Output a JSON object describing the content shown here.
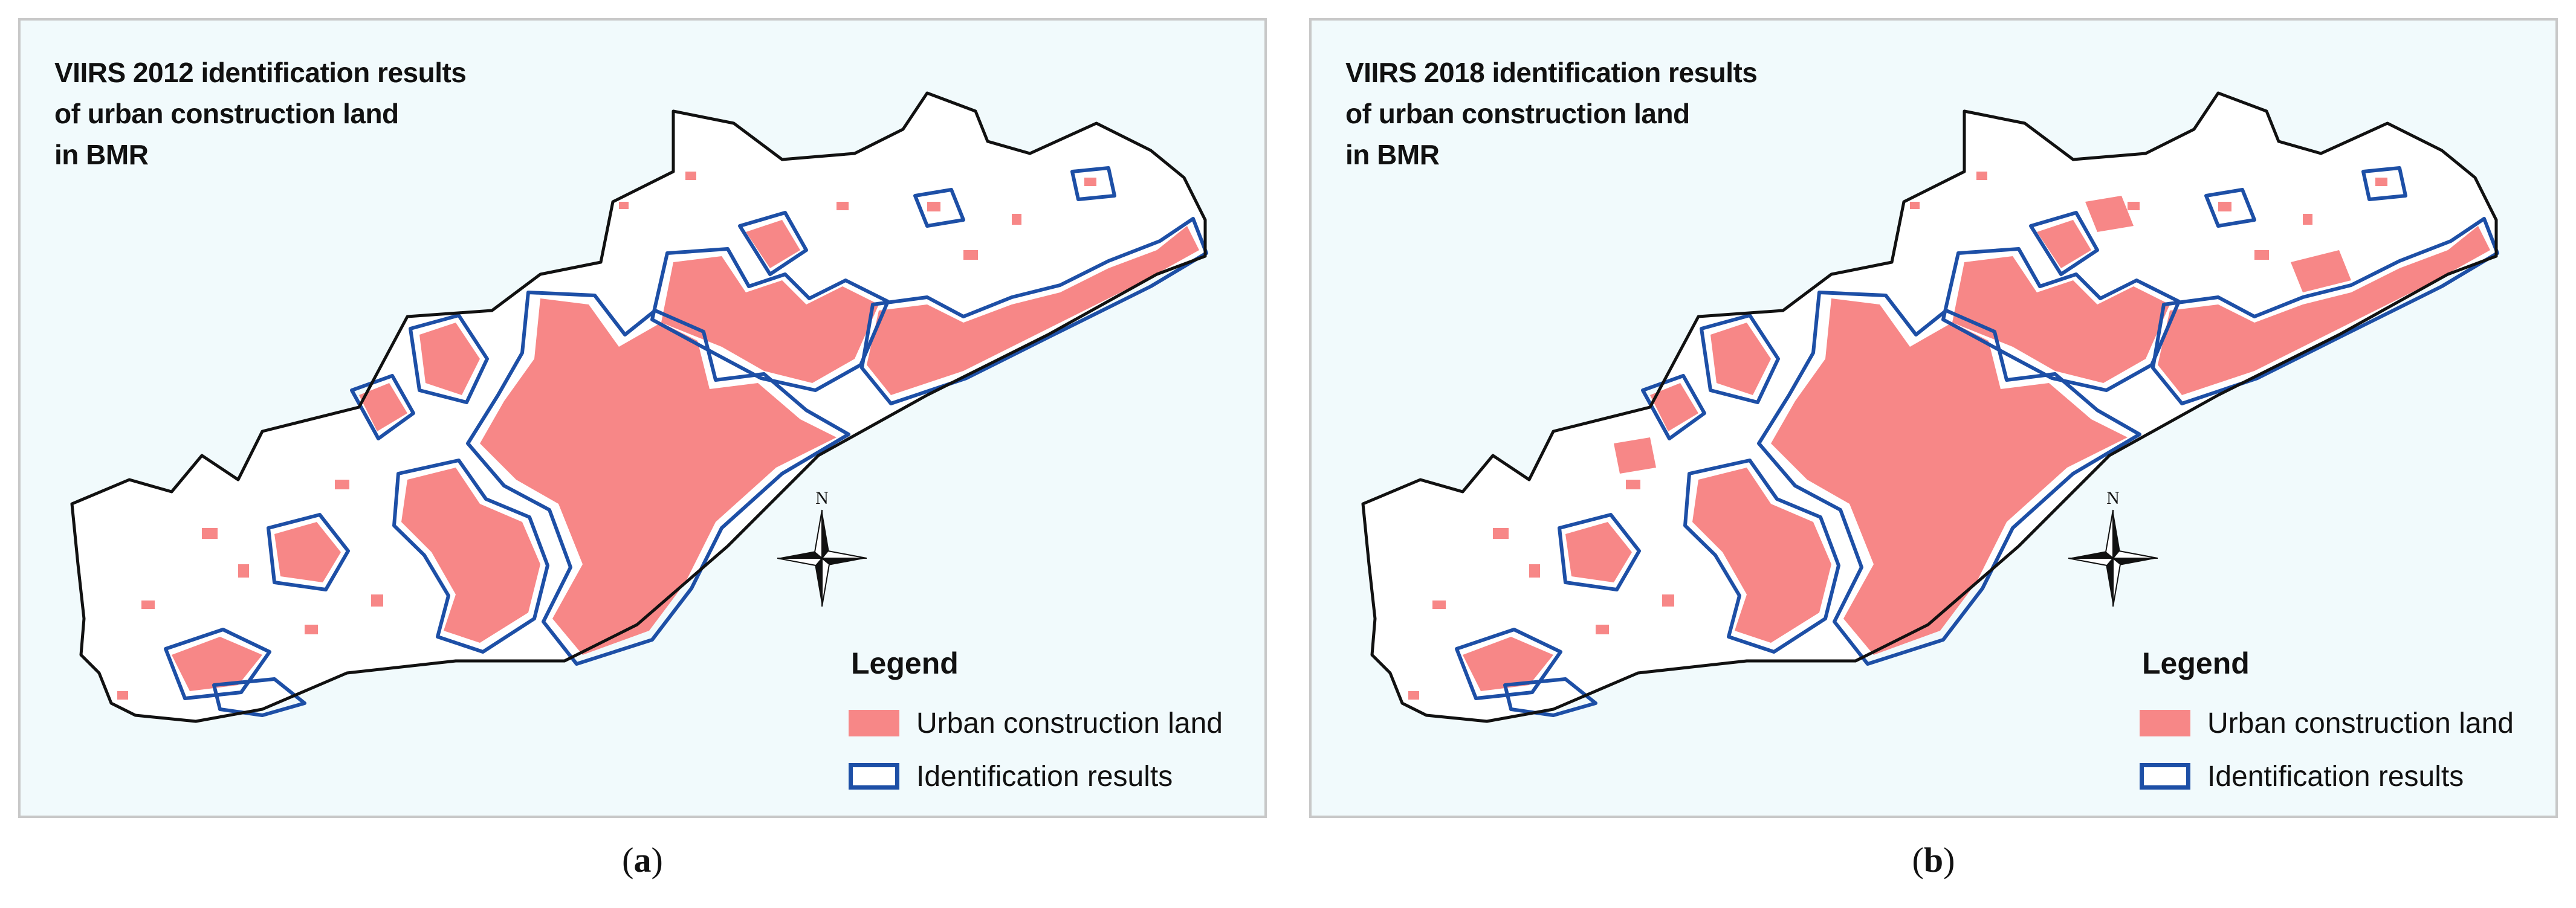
{
  "panels": [
    {
      "id": "a",
      "title_lines": [
        "VIIRS 2012 identification results",
        "of urban construction land",
        "in BMR"
      ],
      "label": "a"
    },
    {
      "id": "b",
      "title_lines": [
        "VIIRS 2018 identification results",
        "of urban construction land",
        "in BMR"
      ],
      "label": "b"
    }
  ],
  "legend": {
    "heading": "Legend",
    "items": [
      {
        "label": "Urban construction land",
        "symbol": "filled-patch",
        "color": "#f78787"
      },
      {
        "label": "Identification results",
        "symbol": "outlined-box",
        "color": "#1d4fa6"
      }
    ]
  },
  "north_arrow": {
    "label": "N"
  },
  "colors": {
    "land_fill": "#f78787",
    "identification_outline": "#1d4fa6",
    "boundary": "#111111",
    "map_background": "#f1fafc"
  }
}
